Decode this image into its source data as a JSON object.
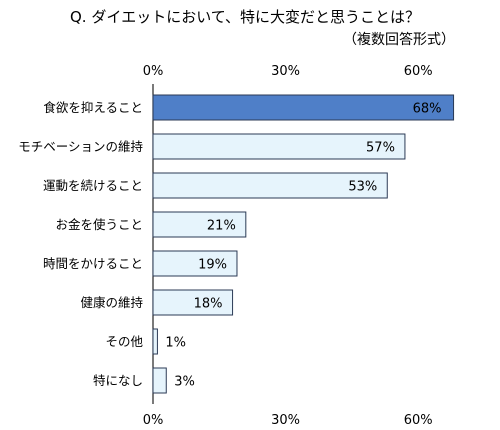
{
  "chart_data": {
    "type": "bar",
    "orientation": "horizontal",
    "title": "Q. ダイエットにおいて、特に大変だと思うことは？",
    "subtitle": "（複数回答形式）",
    "categories": [
      "食欲を抑えること",
      "モチベーションの維持",
      "運動を続けること",
      "お金を使うこと",
      "時間をかけること",
      "健康の維持",
      "その他",
      "特になし"
    ],
    "values": [
      68,
      57,
      53,
      21,
      19,
      18,
      1,
      3
    ],
    "data_labels": [
      "68%",
      "57%",
      "53%",
      "21%",
      "19%",
      "18%",
      "1%",
      "3%"
    ],
    "x_ticks": [
      "0%",
      "30%",
      "60%"
    ],
    "x_tick_values": [
      0,
      30,
      60
    ],
    "xlim": [
      0,
      70
    ],
    "axis_top_and_bottom": true,
    "grid": false,
    "highlight_color": "#4f7fc8",
    "bar_color": "#e6f4fc",
    "bar_border": "#2b3a55"
  }
}
